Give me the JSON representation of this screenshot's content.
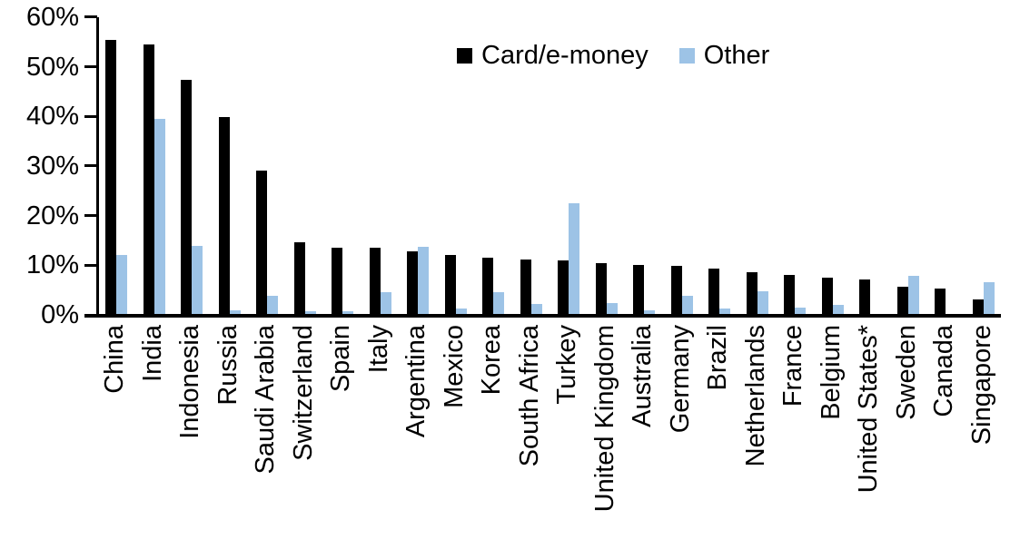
{
  "chart_data": {
    "type": "bar",
    "title": "",
    "xlabel": "",
    "ylabel": "",
    "ylim": [
      0,
      60
    ],
    "yticks": [
      "0%",
      "10%",
      "20%",
      "30%",
      "40%",
      "50%",
      "60%"
    ],
    "grid": false,
    "legend_position": "top-center",
    "categories": [
      "China",
      "India",
      "Indonesia",
      "Russia",
      "Saudi Arabia",
      "Switzerland",
      "Spain",
      "Italy",
      "Argentina",
      "Mexico",
      "Korea",
      "South Africa",
      "Turkey",
      "United Kingdom",
      "Australia",
      "Germany",
      "Brazil",
      "Netherlands",
      "France",
      "Belgium",
      "United States*",
      "Sweden",
      "Canada",
      "Singapore"
    ],
    "series": [
      {
        "name": "Card/e-money",
        "color": "#000000",
        "values": [
          56,
          55,
          48,
          40.5,
          29.6,
          15.2,
          14.1,
          14,
          13.4,
          12.7,
          12.1,
          11.7,
          11.5,
          11,
          10.7,
          10.5,
          9.8,
          9.1,
          8.6,
          8,
          7.7,
          6.3,
          5.9,
          3.7
        ]
      },
      {
        "name": "Other",
        "color": "#9DC3E6",
        "values": [
          12.1,
          39.5,
          13.9,
          0.9,
          3.8,
          0.7,
          0.8,
          4.5,
          13.8,
          1.3,
          4.5,
          2.2,
          22.5,
          2.3,
          0.9,
          3.9,
          1.2,
          4.7,
          1.5,
          2,
          0.2,
          7.9,
          0,
          6.5
        ]
      }
    ]
  }
}
